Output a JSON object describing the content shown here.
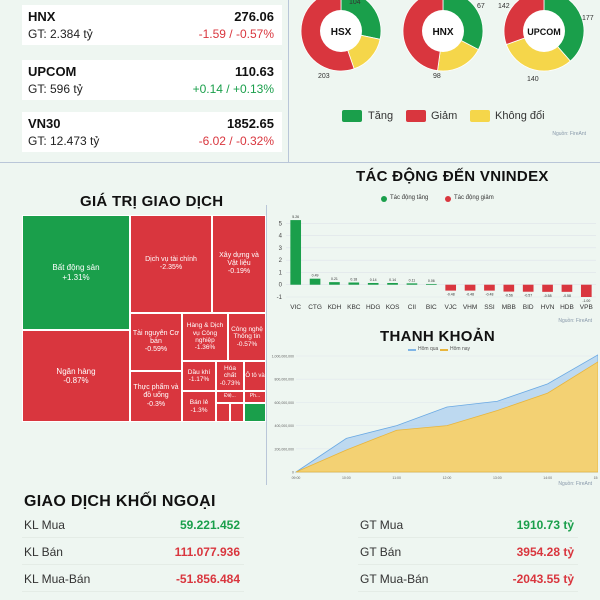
{
  "indices": [
    {
      "name": "HNX",
      "value": "276.06",
      "gt": "GT: 2.384 tỷ",
      "change": "-1.59 / -0.57%",
      "dir": "down"
    },
    {
      "name": "UPCOM",
      "value": "110.63",
      "gt": "GT: 596 tỷ",
      "change": "+0.14 / +0.13%",
      "dir": "up"
    },
    {
      "name": "VN30",
      "value": "1852.65",
      "gt": "GT: 12.473 tỷ",
      "change": "-6.02 / -0.32%",
      "dir": "down"
    }
  ],
  "breadth": {
    "colors": {
      "up": "#1a9f4b",
      "down": "#d9363e",
      "flat": "#f5d64a"
    },
    "donuts": [
      {
        "name": "HSX",
        "up": 104,
        "down": 203,
        "flat": 60,
        "labels": {
          "up": "104",
          "down": "203"
        }
      },
      {
        "name": "HNX",
        "up": 67,
        "down": 98,
        "flat": 40,
        "labels": {
          "up": "67",
          "down": "98"
        }
      },
      {
        "name": "UPCOM",
        "up": 177,
        "down": 140,
        "flat": 142,
        "labels": {
          "up": "177",
          "down": "140",
          "flat": "142"
        }
      }
    ],
    "legend": {
      "up": "Tăng",
      "down": "Giảm",
      "flat": "Không đổi"
    },
    "source": "Nguồn: FireAnt"
  },
  "treemap": {
    "title": "GIÁ TRỊ GIAO DỊCH",
    "cells": [
      {
        "label": "Bất động sản",
        "change": "+1.31%",
        "dir": "up"
      },
      {
        "label": "Ngân hàng",
        "change": "-0.87%",
        "dir": "down"
      },
      {
        "label": "Dịch vụ tài chính",
        "change": "-2.35%",
        "dir": "down"
      },
      {
        "label": "Xây dựng và Vật liệu",
        "change": "-0.19%",
        "dir": "down"
      },
      {
        "label": "Tài nguyên Cơ bản",
        "change": "-0.59%",
        "dir": "down"
      },
      {
        "label": "Hàng & Dịch vụ Công nghiệp",
        "change": "-1.36%",
        "dir": "down"
      },
      {
        "label": "Công nghệ Thông tin",
        "change": "-0.57%",
        "dir": "down"
      },
      {
        "label": "Thực phẩm và đồ uống",
        "change": "-0.3%",
        "dir": "down"
      },
      {
        "label": "Dầu khí",
        "change": "-1.17%",
        "dir": "down"
      },
      {
        "label": "Hóa chất",
        "change": "-0.73%",
        "dir": "down"
      },
      {
        "label": "Ô tô và",
        "change": "",
        "dir": "down"
      },
      {
        "label": "Bán lẻ",
        "change": "-1.3%",
        "dir": "down"
      },
      {
        "label": "Điệ...",
        "change": "",
        "dir": "down"
      },
      {
        "label": "Ph...",
        "change": "",
        "dir": "up"
      }
    ]
  },
  "impact": {
    "title": "TÁC ĐỘNG ĐẾN VNINDEX",
    "legend_up": "Tác động tăng",
    "legend_down": "Tác động giảm",
    "source": "Nguồn: FireAnt"
  },
  "liquidity": {
    "title": "THANH KHOẢN",
    "legend_prev": "Hôm qua",
    "legend_today": "Hôm nay",
    "source": "Nguồn: FireAnt"
  },
  "chart_data": [
    {
      "type": "bar",
      "title": "TÁC ĐỘNG ĐẾN VNINDEX",
      "categories": [
        "VIC",
        "CTG",
        "KDH",
        "KBC",
        "HDG",
        "KOS",
        "CII",
        "BIC",
        "VJC",
        "VHM",
        "SSI",
        "MBB",
        "BID",
        "HVN",
        "HDB",
        "VPB"
      ],
      "values": [
        5.26,
        0.49,
        0.21,
        0.18,
        0.14,
        0.14,
        0.11,
        0.06,
        -0.48,
        -0.48,
        -0.48,
        -0.56,
        -0.57,
        -0.58,
        -0.58,
        -1.0
      ],
      "labels": [
        "5.26",
        "0.49",
        "0.21",
        "0.18",
        "0.14",
        "0.14",
        "0.11",
        "0.06",
        "-0.48",
        "-0.48",
        "-0.48",
        "-0.56",
        "-0.57",
        "-0.58",
        "-0.58",
        "-1.00"
      ],
      "ylim": [
        -1,
        6
      ],
      "yticks": [
        -1,
        0,
        1,
        2,
        3,
        4,
        5
      ],
      "grid": true,
      "legend": "top"
    },
    {
      "type": "area",
      "title": "THANH KHOẢN",
      "x": [
        "09:00",
        "10:00",
        "11:00",
        "12:00",
        "13:00",
        "14:00",
        "15:00"
      ],
      "series": [
        {
          "name": "Hôm qua",
          "values": [
            0,
            290000000,
            400000000,
            560000000,
            610000000,
            760000000,
            1010000000
          ],
          "color": "#a8cdf0"
        },
        {
          "name": "Hôm nay",
          "values": [
            0,
            190000000,
            360000000,
            400000000,
            530000000,
            680000000,
            950000000
          ],
          "color": "#f5d16b"
        }
      ],
      "yticks": [
        "0",
        "200,000,000",
        "400,000,000",
        "600,000,000",
        "800,000,000",
        "1,000,000,000"
      ],
      "ylim": [
        0,
        1000000000
      ]
    }
  ],
  "foreign": {
    "title": "GIAO DỊCH KHỐI NGOẠI",
    "left": [
      {
        "label": "KL Mua",
        "value": "59.221.452",
        "dir": "up"
      },
      {
        "label": "KL Bán",
        "value": "111.077.936",
        "dir": "down"
      },
      {
        "label": "KL Mua-Bán",
        "value": "-51.856.484",
        "dir": "down"
      }
    ],
    "right": [
      {
        "label": "GT Mua",
        "value": "1910.73 tỷ",
        "dir": "up"
      },
      {
        "label": "GT Bán",
        "value": "3954.28 tỷ",
        "dir": "down"
      },
      {
        "label": "GT Mua-Bán",
        "value": "-2043.55 tỷ",
        "dir": "down"
      }
    ]
  }
}
